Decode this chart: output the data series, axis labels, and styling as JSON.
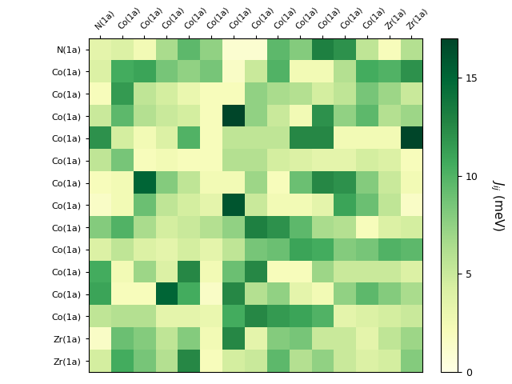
{
  "row_labels": [
    "N(1a)",
    "Co(1a)",
    "Co(1a)",
    "Co(1a)",
    "Co(1a)",
    "Co(1a)",
    "Co(1a)",
    "Co(1a)",
    "Co(1a)",
    "Co(1a)",
    "Co(1a)",
    "Co(1a)",
    "Co(1a)",
    "Zr(1a)",
    "Zr(1a)"
  ],
  "col_labels": [
    "N(1a)",
    "Co(1a)",
    "Co(1a)",
    "Co(1a)",
    "Co(1a)",
    "Co(1a)",
    "Co(1a)",
    "Co(1a)",
    "Co(1a)",
    "Co(1a)",
    "Co(1a)",
    "Co(1a)",
    "Co(1a)",
    "Zr(1a)",
    "Zr(1a)"
  ],
  "colorbar_label": "$J_{ij}$ (meV)",
  "vmin": 0,
  "vmax": 17,
  "cmap": "YlGn",
  "data": [
    [
      3.5,
      4.0,
      2.5,
      6.5,
      9.5,
      7.5,
      1.0,
      1.0,
      9.5,
      8.0,
      13.0,
      12.0,
      5.5,
      2.0,
      6.0
    ],
    [
      4.0,
      10.5,
      11.0,
      8.5,
      7.5,
      8.5,
      1.5,
      5.0,
      10.0,
      2.5,
      2.5,
      6.0,
      10.5,
      10.0,
      12.0
    ],
    [
      2.0,
      11.5,
      5.5,
      4.5,
      3.0,
      2.0,
      2.0,
      7.5,
      6.5,
      6.0,
      4.5,
      5.5,
      8.5,
      7.0,
      5.0
    ],
    [
      5.0,
      9.5,
      6.0,
      5.0,
      4.5,
      2.0,
      17.0,
      7.5,
      5.0,
      2.5,
      12.0,
      7.5,
      9.5,
      6.0,
      7.0
    ],
    [
      12.0,
      4.5,
      2.5,
      4.0,
      10.0,
      2.0,
      5.5,
      5.5,
      5.5,
      12.5,
      12.5,
      2.5,
      2.5,
      2.5,
      17.0
    ],
    [
      5.5,
      8.5,
      2.0,
      2.5,
      2.0,
      2.0,
      6.0,
      6.0,
      4.5,
      4.0,
      3.5,
      3.5,
      4.5,
      4.0,
      2.0
    ],
    [
      2.0,
      2.5,
      15.0,
      8.0,
      5.5,
      2.5,
      2.5,
      7.0,
      2.0,
      9.0,
      12.5,
      12.0,
      8.0,
      5.0,
      2.5
    ],
    [
      1.5,
      2.5,
      9.0,
      5.5,
      4.5,
      3.5,
      16.0,
      5.0,
      2.5,
      2.5,
      3.5,
      11.0,
      9.0,
      5.5,
      1.5
    ],
    [
      8.0,
      10.0,
      6.5,
      4.5,
      5.0,
      6.0,
      7.5,
      13.0,
      12.0,
      9.5,
      6.5,
      6.0,
      2.0,
      4.0,
      4.5
    ],
    [
      4.0,
      5.5,
      4.0,
      3.5,
      4.5,
      3.5,
      5.5,
      8.5,
      9.0,
      11.0,
      10.5,
      8.0,
      8.5,
      10.0,
      9.5
    ],
    [
      10.5,
      2.5,
      7.0,
      4.0,
      12.5,
      2.5,
      9.0,
      12.5,
      2.0,
      2.0,
      7.0,
      5.0,
      5.0,
      5.0,
      4.0
    ],
    [
      11.0,
      2.0,
      2.0,
      15.0,
      10.5,
      1.5,
      12.5,
      6.0,
      7.5,
      3.5,
      2.5,
      7.5,
      9.5,
      8.0,
      6.5
    ],
    [
      5.5,
      6.0,
      6.0,
      3.5,
      3.5,
      3.0,
      10.5,
      12.5,
      11.5,
      11.0,
      10.0,
      3.5,
      4.0,
      4.5,
      5.0
    ],
    [
      1.5,
      9.0,
      8.0,
      5.5,
      8.0,
      2.5,
      12.5,
      3.5,
      8.0,
      8.5,
      5.0,
      5.0,
      3.5,
      5.5,
      7.0
    ],
    [
      4.5,
      10.5,
      8.5,
      6.0,
      12.5,
      2.0,
      4.5,
      5.0,
      9.5,
      6.0,
      7.5,
      5.0,
      4.0,
      4.5,
      8.0
    ]
  ]
}
